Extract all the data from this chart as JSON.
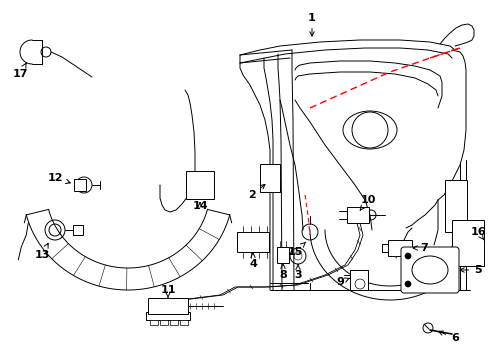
{
  "background_color": "#ffffff",
  "line_color": "#000000",
  "red_dashed_color": "#ff0000",
  "figsize": [
    4.89,
    3.6
  ],
  "dpi": 100
}
